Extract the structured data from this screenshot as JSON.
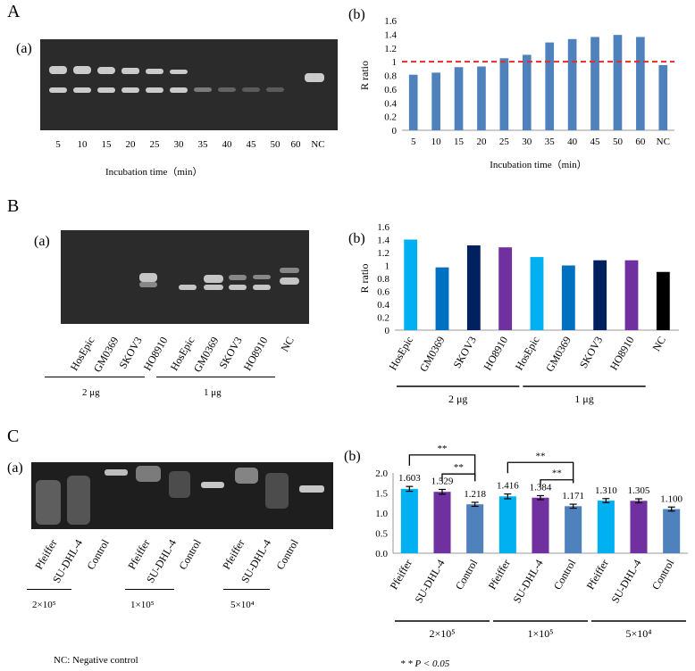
{
  "panels": {
    "A": {
      "letter": "A",
      "gel": {
        "label": "(a)",
        "lanes": [
          "5",
          "10",
          "15",
          "20",
          "25",
          "30",
          "35",
          "40",
          "45",
          "50",
          "60",
          "NC"
        ],
        "xaxis": "Incubation time（min）"
      }
    },
    "B": {
      "letter": "B",
      "gel": {
        "label": "(a)",
        "lanes": [
          "HosEpic",
          "GM0369",
          "SKOV3",
          "HO8910",
          "HosEpic",
          "GM0369",
          "SKOV3",
          "HO8910",
          "NC"
        ],
        "group1": "2 μg",
        "group2": "1 μg"
      }
    },
    "C": {
      "letter": "C",
      "gel": {
        "label": "(a)",
        "lanes": [
          "Pfeiffer",
          "SU-DHL-4",
          "Control",
          "Pfeiffer",
          "SU-DHL-4",
          "Control",
          "Pfeiffer",
          "SU-DHL-4",
          "Control"
        ],
        "groups": [
          "2×10⁵",
          "1×10⁵",
          "5×10⁴"
        ]
      }
    }
  },
  "footer": {
    "nc_note": "NC: Negative control",
    "sig_note": "* * P < 0.05"
  },
  "chart_data": [
    {
      "id": "A-b",
      "label": "(b)",
      "type": "bar",
      "categories": [
        "5",
        "10",
        "15",
        "20",
        "25",
        "30",
        "35",
        "40",
        "45",
        "50",
        "60",
        "NC"
      ],
      "values": [
        0.81,
        0.84,
        0.92,
        0.93,
        1.05,
        1.1,
        1.28,
        1.33,
        1.36,
        1.39,
        1.36,
        0.95
      ],
      "ylabel": "R ratio",
      "xlabel": "Incubation time（min）",
      "ylim": [
        0,
        1.6
      ],
      "yticks": [
        "0",
        "0.2",
        "0.4",
        "0.6",
        "0.8",
        "1",
        "1.2",
        "1.4",
        "1.6"
      ],
      "reference_line": 1,
      "colors": {
        "bar": "#4f81bd",
        "ref": "#e32b2b"
      }
    },
    {
      "id": "B-b",
      "label": "(b)",
      "type": "bar",
      "categories": [
        "HosEpic",
        "GM0369",
        "SKOV3",
        "HO8910",
        "HosEpic",
        "GM0369",
        "SKOV3",
        "HO8910",
        "NC"
      ],
      "values": [
        1.4,
        0.97,
        1.31,
        1.28,
        1.13,
        1.0,
        1.08,
        1.08,
        0.9
      ],
      "bar_colors": [
        "#00b0f0",
        "#0070c0",
        "#002060",
        "#7030a0",
        "#00b0f0",
        "#0070c0",
        "#002060",
        "#7030a0",
        "#000000"
      ],
      "ylabel": "R ratio",
      "ylim": [
        0,
        1.6
      ],
      "yticks": [
        "0",
        "0.2",
        "0.4",
        "0.6",
        "0.8",
        "1",
        "1.2",
        "1.4",
        "1.6"
      ],
      "groups": [
        "2 μg",
        "1 μg"
      ]
    },
    {
      "id": "C-b",
      "label": "(b)",
      "type": "bar",
      "categories": [
        "Pfeiffer",
        "SU-DHL-4",
        "Control",
        "Pfeiffer",
        "SU-DHL-4",
        "Control",
        "Pfeiffer",
        "SU-DHL-4",
        "Control"
      ],
      "values": [
        1.603,
        1.529,
        1.218,
        1.416,
        1.384,
        1.171,
        1.31,
        1.305,
        1.1
      ],
      "data_labels": [
        "1.603",
        "1.529",
        "1.218",
        "1.416",
        "1.384",
        "1.171",
        "1.310",
        "1.305",
        "1.100"
      ],
      "errors": [
        0.06,
        0.06,
        0.05,
        0.06,
        0.05,
        0.05,
        0.05,
        0.05,
        0.05
      ],
      "bar_colors": [
        "#00b0f0",
        "#7030a0",
        "#4f81bd",
        "#00b0f0",
        "#7030a0",
        "#4f81bd",
        "#00b0f0",
        "#7030a0",
        "#4f81bd"
      ],
      "ylim": [
        0,
        2.0
      ],
      "yticks": [
        "0.0",
        "0.5",
        "1.0",
        "1.5",
        "2.0"
      ],
      "groups": [
        "2×10⁵",
        "1×10⁵",
        "5×10⁴"
      ],
      "significance": [
        {
          "from": 0,
          "to": 2,
          "label": "**"
        },
        {
          "from": 1,
          "to": 2,
          "label": "**"
        },
        {
          "from": 3,
          "to": 5,
          "label": "**"
        },
        {
          "from": 4,
          "to": 5,
          "label": "**"
        }
      ]
    }
  ]
}
